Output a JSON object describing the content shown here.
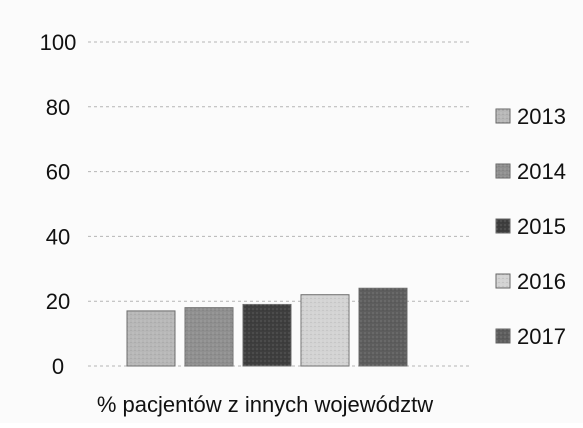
{
  "chart_data": {
    "type": "bar",
    "categories": [
      "% pacjentów z innych województw"
    ],
    "xlabel": "% pacjentów z innych województw",
    "ylim": [
      0,
      100
    ],
    "yticks": [
      0,
      20,
      40,
      60,
      80,
      100
    ],
    "grid": true,
    "legend_position": "right",
    "series": [
      {
        "name": "2013",
        "values": [
          17
        ],
        "color": "#b7b7b7"
      },
      {
        "name": "2014",
        "values": [
          18
        ],
        "color": "#8f8f8f"
      },
      {
        "name": "2015",
        "values": [
          19
        ],
        "color": "#3e3e3e"
      },
      {
        "name": "2016",
        "values": [
          22
        ],
        "color": "#d3d3d3"
      },
      {
        "name": "2017",
        "values": [
          24
        ],
        "color": "#5d5d5d"
      }
    ]
  }
}
